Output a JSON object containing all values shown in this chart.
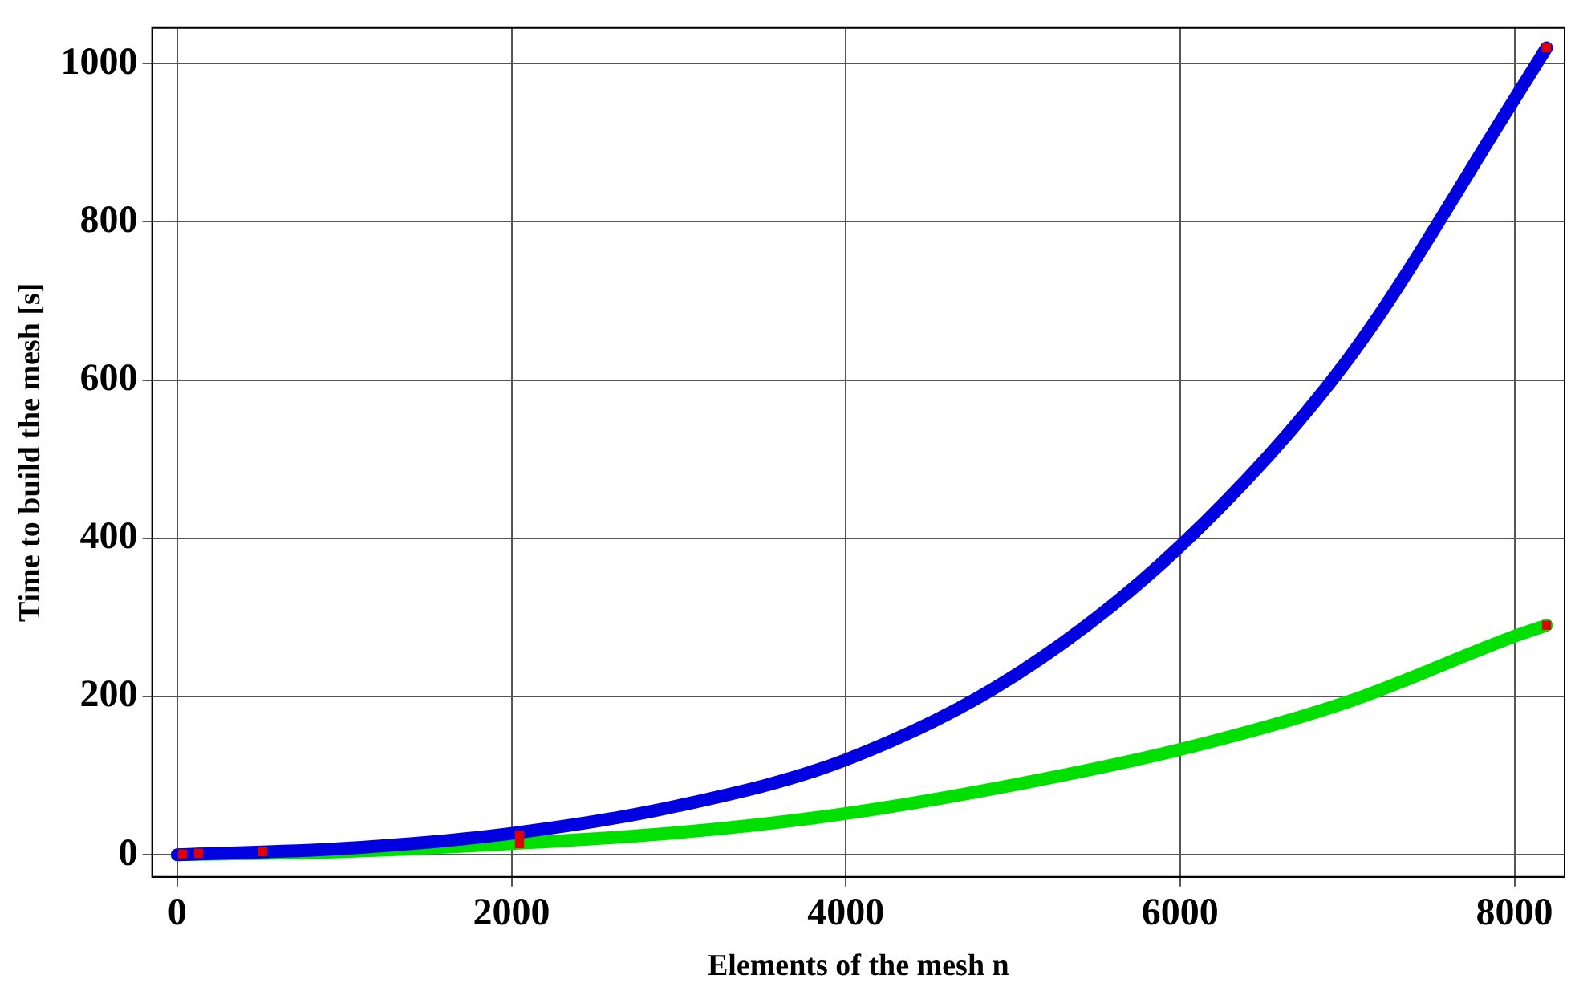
{
  "chart_data": {
    "type": "line",
    "xlabel": "Elements of the mesh n",
    "ylabel": "Time to build the mesh [s]",
    "xlim": [
      -150,
      8300
    ],
    "ylim": [
      -28,
      1045
    ],
    "xticks": [
      0,
      2000,
      4000,
      6000,
      8000
    ],
    "yticks": [
      0,
      200,
      400,
      600,
      800,
      1000
    ],
    "grid": true,
    "legend": false,
    "marker": "none",
    "series": [
      {
        "color": "#0000e0",
        "x": [
          0,
          1000,
          2000,
          3000,
          4000,
          5000,
          6000,
          7000,
          8000,
          8192
        ],
        "values": [
          0,
          8,
          27,
          62,
          120,
          225,
          390,
          625,
          955,
          1020
        ]
      },
      {
        "color": "#00e000",
        "x": [
          0,
          1000,
          2000,
          3000,
          4000,
          5000,
          6000,
          7000,
          8000,
          8192
        ],
        "values": [
          0,
          4,
          14,
          28,
          52,
          88,
          133,
          193,
          276,
          290
        ]
      },
      {
        "type": "scatter",
        "marker": "square",
        "color": "#e00000",
        "x": [
          32,
          128,
          512,
          2048,
          2048,
          8192,
          8192
        ],
        "values": [
          1,
          2,
          4,
          25,
          14,
          1020,
          290
        ]
      }
    ]
  }
}
